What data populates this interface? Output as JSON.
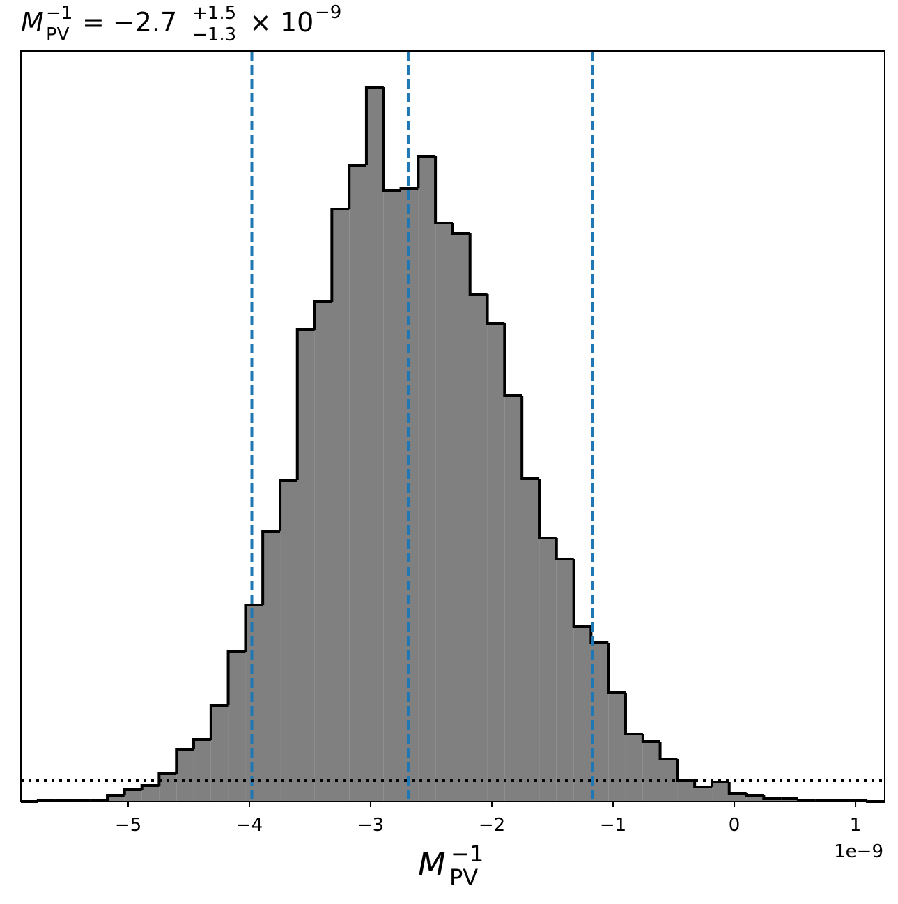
{
  "chart_data": {
    "type": "histogram",
    "title": {
      "base": "M",
      "sub": "PV",
      "sup": "−1",
      "equals": "= −2.7",
      "upper": "+1.5",
      "lower": "−1.3",
      "times": "× 10",
      "exponent": "−9"
    },
    "x_label": {
      "base": "M",
      "sub": "PV",
      "sup": "−1"
    },
    "offset_text": "1e−9",
    "bins": [
      -5.885,
      -5.742,
      -5.6,
      -5.457,
      -5.315,
      -5.172,
      -5.03,
      -4.887,
      -4.745,
      -4.602,
      -4.46,
      -4.317,
      -4.175,
      -4.032,
      -3.89,
      -3.747,
      -3.605,
      -3.462,
      -3.32,
      -3.177,
      -3.035,
      -2.892,
      -2.75,
      -2.607,
      -2.465,
      -2.322,
      -2.18,
      -2.037,
      -1.895,
      -1.752,
      -1.609,
      -1.467,
      -1.324,
      -1.182,
      -1.039,
      -0.897,
      -0.754,
      -0.612,
      -0.469,
      -0.327,
      -0.184,
      -0.042,
      0.101,
      0.243,
      0.386,
      0.528,
      0.671,
      0.813,
      0.956,
      1.098,
      1.241
    ],
    "values": [
      0,
      2,
      1,
      1,
      1,
      9,
      17,
      23,
      40,
      75,
      89,
      138,
      215,
      282,
      388,
      461,
      677,
      717,
      850,
      913,
      1025,
      877,
      880,
      926,
      830,
      815,
      728,
      686,
      582,
      463,
      378,
      348,
      251,
      228,
      156,
      97,
      86,
      61,
      30,
      21,
      28,
      12,
      9,
      4,
      4,
      1,
      1,
      2,
      1,
      0
    ],
    "color": "#808080",
    "edge_color": "#000000",
    "xlim": [
      -5.885,
      1.241
    ],
    "ylim": [
      0,
      1077
    ],
    "xticks": [
      {
        "value": -5,
        "label": "−5"
      },
      {
        "value": -4,
        "label": "−4"
      },
      {
        "value": -3,
        "label": "−3"
      },
      {
        "value": -2,
        "label": "−2"
      },
      {
        "value": -1,
        "label": "−1"
      },
      0,
      1
    ],
    "quantiles": [
      -3.98,
      -2.69,
      -1.17
    ],
    "quantile_color": "#1f77b4",
    "reference_line": 30
  }
}
